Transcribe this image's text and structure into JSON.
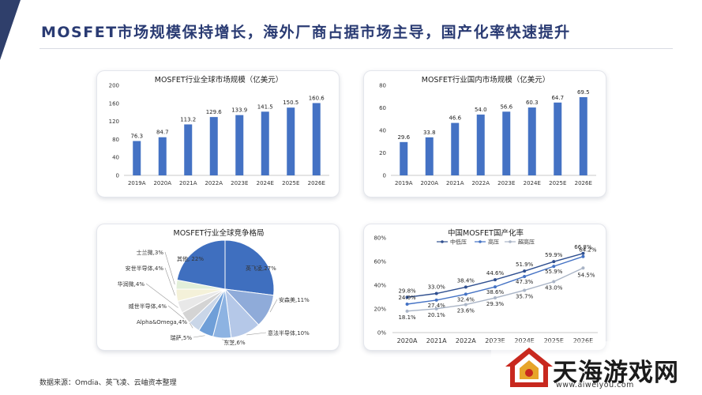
{
  "page": {
    "title": "MOSFET市场规模保持增长，海外厂商占据市场主导，国产化率快速提升",
    "source": "数据来源：Omdia、英飞凌、云岫资本整理"
  },
  "colors": {
    "accent": "#2f3f6b",
    "title": "#2a3b73",
    "bar": "#4472c4",
    "series": [
      "#2f4f8f",
      "#4472c4",
      "#a9b4c6"
    ],
    "pie": [
      "#3f6fbf",
      "#8fabd9",
      "#b5c8e8",
      "#8db3e2",
      "#6f9fd8",
      "#c9d6e8",
      "#d4d4d4",
      "#e8e8e8",
      "#f4f1d9",
      "#e2efd9"
    ]
  },
  "watermark": {
    "text": "天海游戏网",
    "url": "www.aiweiyou.com"
  },
  "chart_data": [
    {
      "type": "bar",
      "title": "MOSFET行业全球市场规模（亿美元）",
      "categories": [
        "2019A",
        "2020A",
        "2021A",
        "2022A",
        "2023E",
        "2024E",
        "2025E",
        "2026E"
      ],
      "values": [
        76.3,
        84.7,
        113.2,
        129.6,
        133.9,
        141.5,
        150.5,
        160.6
      ],
      "value_labels": [
        "76.3",
        "84.7",
        "113.2",
        "129.6",
        "133.9",
        "141.5",
        "150.5",
        "160.6"
      ],
      "ylim": [
        0,
        200
      ],
      "yticks": [
        "0",
        "40",
        "80",
        "120",
        "160",
        "200"
      ],
      "grid": false
    },
    {
      "type": "bar",
      "title": "MOSFET行业国内市场规模（亿美元）",
      "categories": [
        "2019A",
        "2020A",
        "2021A",
        "2022A",
        "2023E",
        "2024E",
        "2025E",
        "2026E"
      ],
      "values": [
        29.6,
        33.8,
        46.6,
        54.0,
        56.6,
        60.3,
        64.7,
        69.5
      ],
      "value_labels": [
        "29.6",
        "33.8",
        "46.6",
        "54.0",
        "56.6",
        "60.3",
        "64.7",
        "69.5"
      ],
      "ylim": [
        0,
        80
      ],
      "yticks": [
        "0",
        "20",
        "40",
        "60",
        "80"
      ],
      "grid": false
    },
    {
      "type": "pie",
      "title": "MOSFET行业全球竞争格局",
      "slices": [
        {
          "label": "英飞凌,27%",
          "value": 27
        },
        {
          "label": "安森美,11%",
          "value": 11
        },
        {
          "label": "意法半导体,10%",
          "value": 10
        },
        {
          "label": "东芝,6%",
          "value": 6
        },
        {
          "label": "瑞萨,5%",
          "value": 5
        },
        {
          "label": "Alpha&Omega,4%",
          "value": 4
        },
        {
          "label": "威世半导体,4%",
          "value": 4
        },
        {
          "label": "华润微,4%",
          "value": 4
        },
        {
          "label": "安世半导体,4%",
          "value": 4
        },
        {
          "label": "士兰微,3%",
          "value": 3
        },
        {
          "label": "其他, 22%",
          "value": 22
        }
      ]
    },
    {
      "type": "line",
      "title": "中国MOSFET国产化率",
      "categories": [
        "2020A",
        "2021A",
        "2022A",
        "2023E",
        "2024E",
        "2025E",
        "2026E"
      ],
      "ylim": [
        0,
        80
      ],
      "yticks": [
        "0%",
        "20%",
        "40%",
        "60%",
        "80%"
      ],
      "legend_position": "top",
      "series": [
        {
          "name": "中低压",
          "values": [
            29.8,
            33.0,
            38.4,
            44.6,
            51.9,
            59.9,
            66.8
          ],
          "labels": [
            "29.8%",
            "33.0%",
            "38.4%",
            "44.6%",
            "51.9%",
            "59.9%",
            "66.8%"
          ]
        },
        {
          "name": "高压",
          "values": [
            24.0,
            27.4,
            32.4,
            38.6,
            47.3,
            55.9,
            64.2
          ],
          "labels": [
            "24.0%",
            "27.4%",
            "32.4%",
            "38.6%",
            "47.3%",
            "55.9%",
            "64.2%"
          ]
        },
        {
          "name": "超高压",
          "values": [
            18.1,
            20.1,
            23.6,
            29.3,
            35.7,
            43.0,
            54.5
          ],
          "labels": [
            "18.1%",
            "20.1%",
            "23.6%",
            "29.3%",
            "35.7%",
            "43.0%",
            "54.5%"
          ]
        }
      ]
    }
  ]
}
